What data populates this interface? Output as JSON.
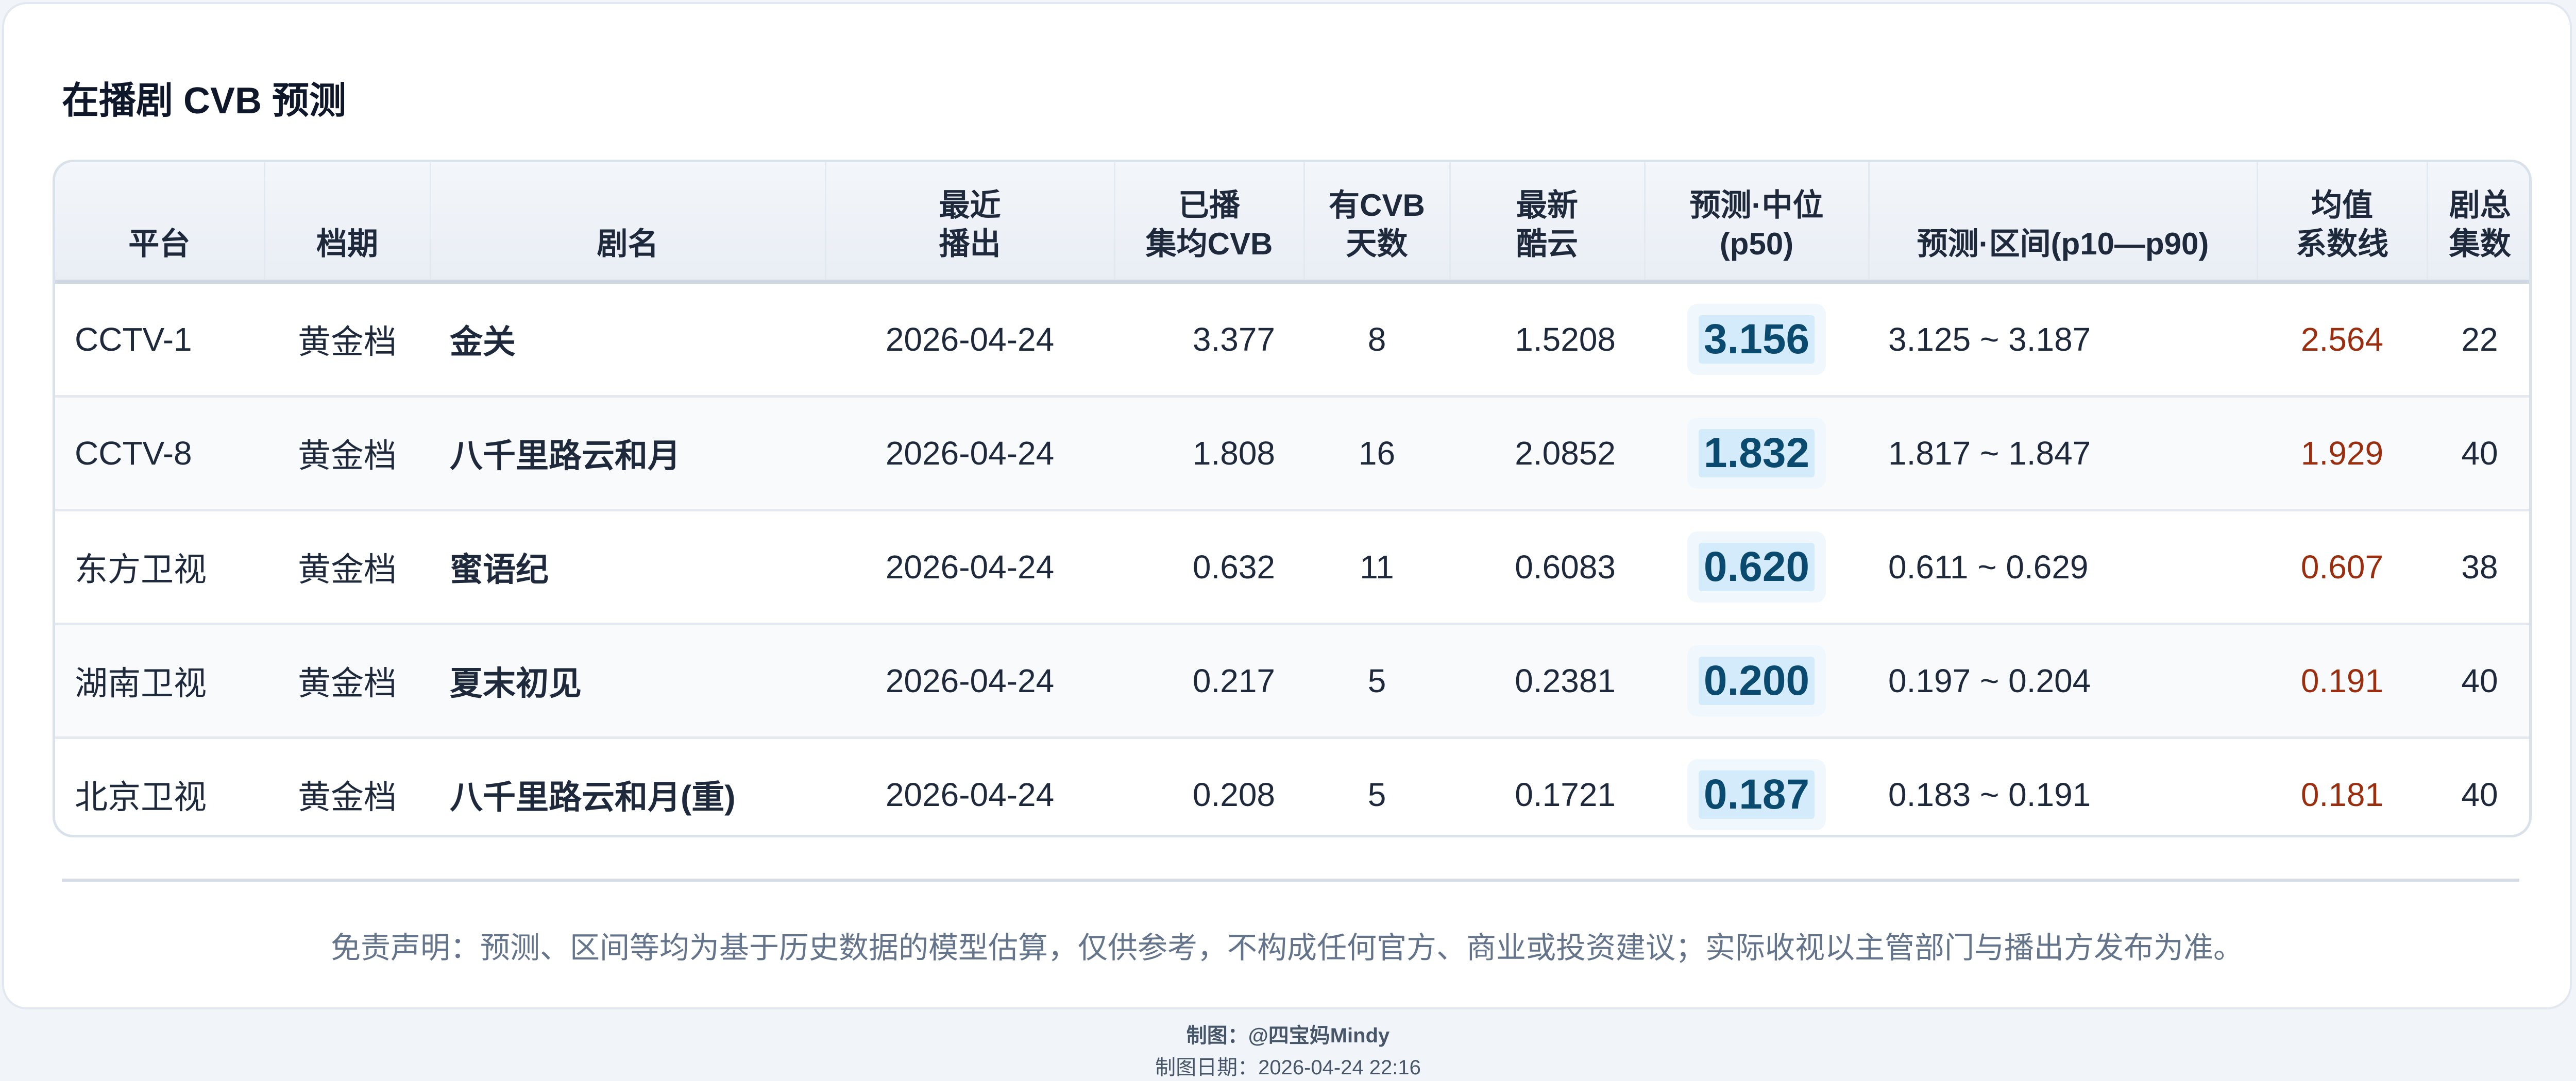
{
  "title": "在播剧 CVB 预测",
  "columns": [
    "平台",
    "档期",
    "剧名",
    "最近\n播出",
    "已播\n集均CVB",
    "有CVB\n天数",
    "最新\n酷云",
    "预测·中位\n(p50)",
    "预测·区间(p10—p90)",
    "均值\n系数线",
    "剧总\n集数"
  ],
  "rows": [
    {
      "platform": "CCTV-1",
      "slot": "黄金档",
      "name": "金关",
      "last_air": "2026-04-24",
      "avg_cvb": "3.377",
      "cvb_days": "8",
      "kuyun": "1.5208",
      "p50": "3.156",
      "range": "3.125 ~ 3.187",
      "coef_line": "2.564",
      "episodes": "22"
    },
    {
      "platform": "CCTV-8",
      "slot": "黄金档",
      "name": "八千里路云和月",
      "last_air": "2026-04-24",
      "avg_cvb": "1.808",
      "cvb_days": "16",
      "kuyun": "2.0852",
      "p50": "1.832",
      "range": "1.817 ~ 1.847",
      "coef_line": "1.929",
      "episodes": "40"
    },
    {
      "platform": "东方卫视",
      "slot": "黄金档",
      "name": "蜜语纪",
      "last_air": "2026-04-24",
      "avg_cvb": "0.632",
      "cvb_days": "11",
      "kuyun": "0.6083",
      "p50": "0.620",
      "range": "0.611 ~ 0.629",
      "coef_line": "0.607",
      "episodes": "38"
    },
    {
      "platform": "湖南卫视",
      "slot": "黄金档",
      "name": "夏末初见",
      "last_air": "2026-04-24",
      "avg_cvb": "0.217",
      "cvb_days": "5",
      "kuyun": "0.2381",
      "p50": "0.200",
      "range": "0.197 ~ 0.204",
      "coef_line": "0.191",
      "episodes": "40"
    },
    {
      "platform": "北京卫视",
      "slot": "黄金档",
      "name": "八千里路云和月(重)",
      "last_air": "2026-04-24",
      "avg_cvb": "0.208",
      "cvb_days": "5",
      "kuyun": "0.1721",
      "p50": "0.187",
      "range": "0.183 ~ 0.191",
      "coef_line": "0.181",
      "episodes": "40"
    }
  ],
  "disclaimer": "免责声明：预测、区间等均为基于历史数据的模型估算，仅供参考，不构成任何官方、商业或投资建议；实际收视以主管部门与播出方发布为准。",
  "footer": {
    "author": "制图：@四宝妈Mindy",
    "date": "制图日期：2026-04-24 22:16"
  },
  "colors": {
    "p50_text": "#0b4a6f",
    "p50_highlight": "#d3ebfb",
    "coef_line": "#9a2e0e",
    "header_bg": "#eef2f7"
  }
}
